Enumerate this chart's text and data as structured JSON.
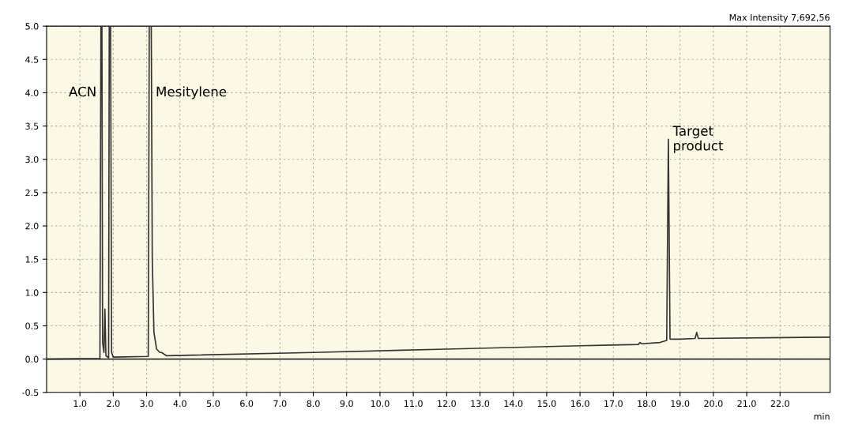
{
  "chart_data": {
    "type": "line",
    "xlabel": "min",
    "x": [
      0,
      1.6,
      1.63,
      1.66,
      1.68,
      1.72,
      1.75,
      1.78,
      1.86,
      1.88,
      1.92,
      1.95,
      2.0,
      3.05,
      3.08,
      3.14,
      3.17,
      3.22,
      3.3,
      3.4,
      3.45,
      3.6,
      8,
      12,
      16,
      17.75,
      17.8,
      17.85,
      18.4,
      18.6,
      18.65,
      18.7,
      19.0,
      19.45,
      19.5,
      19.55,
      23.5
    ],
    "series": [
      {
        "color": "#333333",
        "values": [
          0.0,
          0.01,
          5.0,
          5.0,
          0.25,
          0.1,
          0.75,
          0.05,
          0.02,
          5.0,
          5.0,
          0.1,
          0.03,
          0.04,
          5.0,
          5.0,
          1.5,
          0.4,
          0.15,
          0.1,
          0.1,
          0.05,
          0.1,
          0.15,
          0.2,
          0.22,
          0.25,
          0.23,
          0.25,
          0.28,
          3.3,
          0.3,
          0.3,
          0.31,
          0.4,
          0.31,
          0.33
        ]
      }
    ],
    "xlim": [
      0,
      23.5
    ],
    "ylim": [
      -0.5,
      5.0
    ],
    "xticks": [
      {
        "value": 1,
        "label": "1.0"
      },
      {
        "value": 2,
        "label": "2.0"
      },
      {
        "value": 3,
        "label": "3.0"
      },
      {
        "value": 4,
        "label": "4.0"
      },
      {
        "value": 5,
        "label": "5.0"
      },
      {
        "value": 6,
        "label": "6.0"
      },
      {
        "value": 7,
        "label": "7.0"
      },
      {
        "value": 8,
        "label": "8.0"
      },
      {
        "value": 9,
        "label": "9.0"
      },
      {
        "value": 10,
        "label": "10.0"
      },
      {
        "value": 11,
        "label": "11.0"
      },
      {
        "value": 12,
        "label": "12.0"
      },
      {
        "value": 13,
        "label": "13.0"
      },
      {
        "value": 14,
        "label": "14.0"
      },
      {
        "value": 15,
        "label": "15.0"
      },
      {
        "value": 16,
        "label": "16.0"
      },
      {
        "value": 17,
        "label": "17.0"
      },
      {
        "value": 18,
        "label": "18.0"
      },
      {
        "value": 19,
        "label": "19.0"
      },
      {
        "value": 20,
        "label": "20.0"
      },
      {
        "value": 21,
        "label": "21.0"
      },
      {
        "value": 22,
        "label": "22.0"
      }
    ],
    "yticks": [
      {
        "value": -0.5,
        "label": "-0.5"
      },
      {
        "value": 0,
        "label": "0.0"
      },
      {
        "value": 0.5,
        "label": "0.5"
      },
      {
        "value": 1,
        "label": "1.0"
      },
      {
        "value": 1.5,
        "label": "1.5"
      },
      {
        "value": 2,
        "label": "2.0"
      },
      {
        "value": 2.5,
        "label": "2.5"
      },
      {
        "value": 3,
        "label": "3.0"
      },
      {
        "value": 3.5,
        "label": "3.5"
      },
      {
        "value": 4,
        "label": "4.0"
      },
      {
        "value": 4.5,
        "label": "4.5"
      },
      {
        "value": 5,
        "label": "5.0"
      }
    ],
    "ref_lines": [
      {
        "axis": "y",
        "value": 0,
        "color": "#333333",
        "line_style": "solid"
      }
    ],
    "grid": true,
    "line_style": "solid",
    "marker": "none",
    "annotations": [
      {
        "text": "ACN",
        "x": 1.63,
        "y": 4.0
      },
      {
        "text": "Mesitylene",
        "x": 3.14,
        "y": 4.0
      },
      {
        "text": "Target\nproduct",
        "x": 18.65,
        "y": 3.3
      },
      "Max Intensity 7,692,56"
    ]
  }
}
